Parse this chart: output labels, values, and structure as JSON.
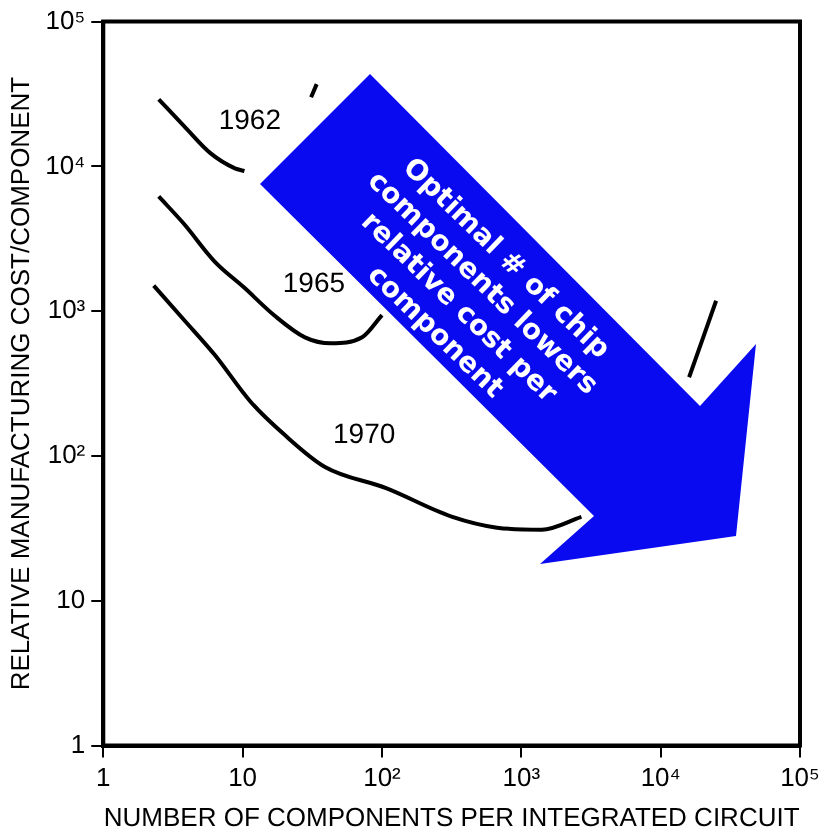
{
  "chart_data": {
    "type": "line",
    "xlabel": "NUMBER OF COMPONENTS PER INTEGRATED CIRCUIT",
    "ylabel": "RELATIVE MANUFACTURING COST/COMPONENT",
    "log": "xy",
    "xlim": [
      1,
      100000
    ],
    "ylim": [
      1,
      100000
    ],
    "xticks": [
      1,
      10,
      {
        "value": 100,
        "label": "10²"
      },
      {
        "value": 1000,
        "label": "10³"
      },
      {
        "value": 10000,
        "label": "10⁴"
      },
      {
        "value": 100000,
        "label": "10⁵"
      }
    ],
    "yticks": [
      1,
      10,
      {
        "value": 100,
        "label": "10²"
      },
      {
        "value": 1000,
        "label": "10³"
      },
      {
        "value": 10000,
        "label": "10⁴"
      },
      {
        "value": 100000,
        "label": "10⁵"
      }
    ],
    "grid": false,
    "legend": false,
    "marker": "none",
    "line_style": "solid",
    "series": [
      {
        "name": "1962",
        "color": "#000000",
        "x": [
          2.5,
          3.8,
          5.9,
          8.8,
          10.3,
          null,
          31,
          34
        ],
        "values": [
          29000,
          19000,
          12300,
          9700,
          9300,
          null,
          30000,
          37000
        ]
      },
      {
        "name": "1965",
        "color": "#000000",
        "x": [
          2.5,
          3.8,
          6.3,
          10.3,
          17,
          28,
          43,
          72,
          100
        ],
        "values": [
          6200,
          4000,
          2200,
          1450,
          930,
          660,
          600,
          660,
          940
        ]
      },
      {
        "name": "1970",
        "color": "#000000",
        "x": [
          2.3,
          3.8,
          6.3,
          11.4,
          20,
          39,
          107,
          320,
          670,
          1400,
          2700,
          null,
          16000,
          25000
        ],
        "values": [
          1500,
          870,
          500,
          237,
          140,
          84,
          60,
          38,
          32,
          31,
          38,
          null,
          350,
          1180
        ]
      }
    ],
    "annotations": [
      "Optimal # of chip components lowers relative cost per component"
    ]
  }
}
